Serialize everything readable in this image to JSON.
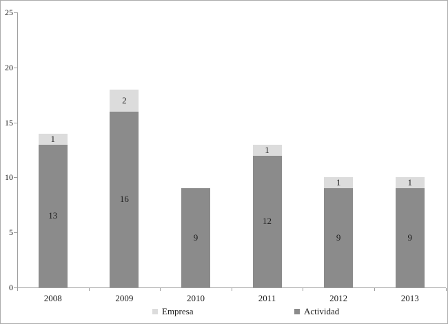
{
  "chart_data": {
    "type": "bar",
    "stacked": true,
    "title": "",
    "xlabel": "",
    "ylabel": "",
    "categories": [
      "2008",
      "2009",
      "2010",
      "2011",
      "2012",
      "2013"
    ],
    "series": [
      {
        "name": "Actividad",
        "color": "#8b8b8b",
        "label_color": "#1f1f1f",
        "values": [
          13,
          16,
          9,
          12,
          9,
          9
        ]
      },
      {
        "name": "Empresa",
        "color": "#dcdcdc",
        "label_color": "#1f1f1f",
        "values": [
          1,
          2,
          0,
          1,
          1,
          1
        ]
      }
    ],
    "stack_order": "bottom-to-top",
    "bar_labels_visible": true,
    "ylim": [
      0,
      25
    ],
    "yticks": [
      "0",
      "5",
      "10",
      "15",
      "20",
      "25"
    ],
    "ytick_values": [
      0,
      5,
      10,
      15,
      20,
      25
    ],
    "grid": false,
    "legend_position": "bottom",
    "legend": {
      "items": [
        {
          "label": "Empresa",
          "color": "#dcdcdc"
        },
        {
          "label": "Actividad",
          "color": "#8b8b8b"
        }
      ]
    },
    "colors": {
      "axis": "#9e9e9e",
      "text": "#1a1a1a",
      "frame_border": "#ababab",
      "background": "#ffffff"
    }
  }
}
